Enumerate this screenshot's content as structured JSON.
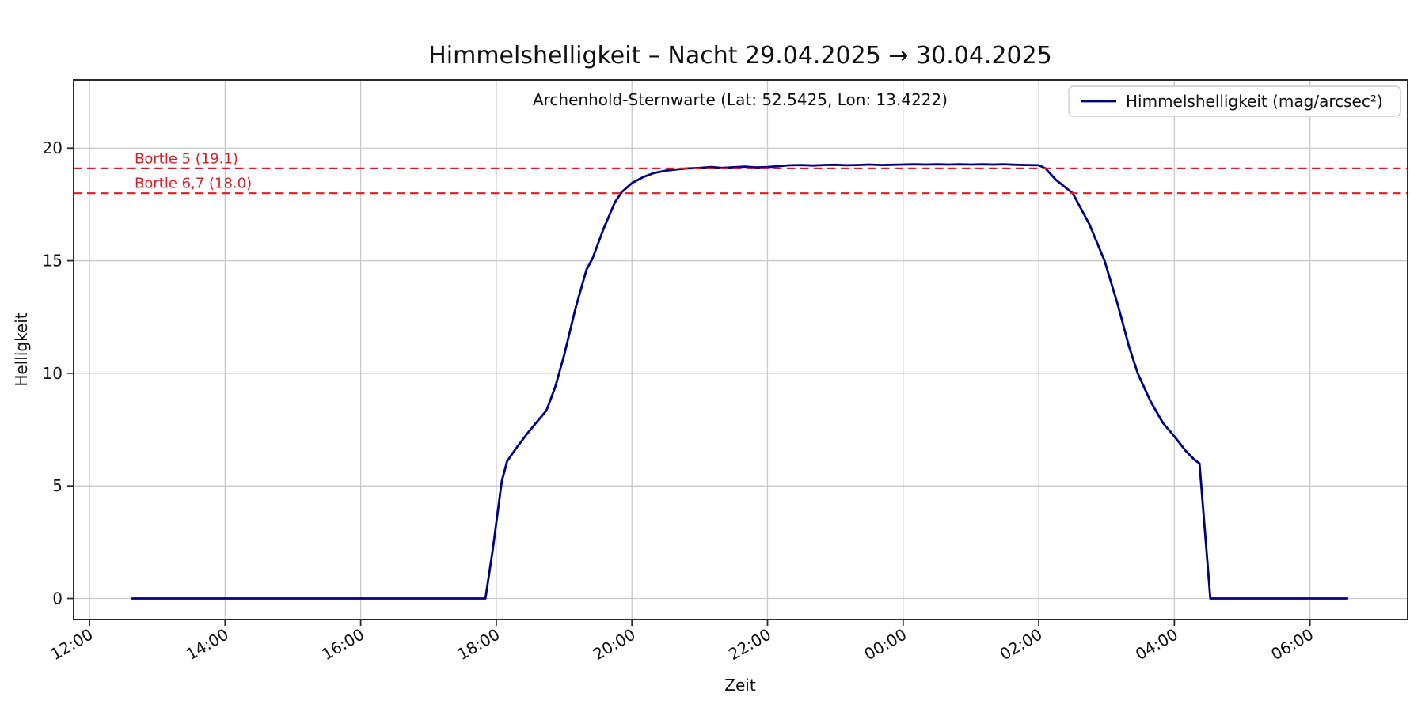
{
  "figure": {
    "background": "#ffffff"
  },
  "chart_data": {
    "type": "line",
    "title": "Himmelshelligkeit – Nacht 29.04.2025 → 30.04.2025",
    "subtitle": "Archenhold-Sternwarte (Lat: 52.5425, Lon: 13.4222)",
    "xlabel": "Zeit",
    "ylabel": "Helligkeit",
    "x_convention": "decimal hours; 12.0 = 12:00 on 29.04.2025, values >= 24 are after midnight (30.04.2025)",
    "xlim": [
      11.766,
      31.44
    ],
    "ylim": [
      -0.93,
      23.03
    ],
    "grid": true,
    "x_ticks": [
      {
        "value": 12,
        "label": "12:00"
      },
      {
        "value": 14,
        "label": "14:00"
      },
      {
        "value": 16,
        "label": "16:00"
      },
      {
        "value": 18,
        "label": "18:00"
      },
      {
        "value": 20,
        "label": "20:00"
      },
      {
        "value": 22,
        "label": "22:00"
      },
      {
        "value": 24,
        "label": "00:00"
      },
      {
        "value": 26,
        "label": "02:00"
      },
      {
        "value": 28,
        "label": "04:00"
      },
      {
        "value": 30,
        "label": "06:00"
      }
    ],
    "y_ticks": [
      0,
      5,
      10,
      15,
      20
    ],
    "legend": {
      "position": "upper-right",
      "entries": [
        {
          "label": "Himmelshelligkeit (mag/arcsec²)",
          "color": "#000080"
        }
      ]
    },
    "thresholds": [
      {
        "label": "Bortle 5 (19.1)",
        "value": 19.1,
        "color": "#d02428",
        "style": "dashed"
      },
      {
        "label": "Bortle 6,7 (18.0)",
        "value": 18.0,
        "color": "#d02428",
        "style": "dashed"
      }
    ],
    "series": [
      {
        "name": "Himmelshelligkeit (mag/arcsec²)",
        "color": "#000080",
        "points": [
          [
            12.63,
            0
          ],
          [
            13.0,
            0
          ],
          [
            13.5,
            0
          ],
          [
            14.0,
            0
          ],
          [
            14.5,
            0
          ],
          [
            15.0,
            0
          ],
          [
            15.5,
            0
          ],
          [
            16.0,
            0
          ],
          [
            16.5,
            0
          ],
          [
            17.0,
            0
          ],
          [
            17.5,
            0
          ],
          [
            17.84,
            0
          ],
          [
            17.95,
            2.2
          ],
          [
            18.08,
            5.2
          ],
          [
            18.16,
            6.1
          ],
          [
            18.3,
            6.7
          ],
          [
            18.45,
            7.3
          ],
          [
            18.6,
            7.85
          ],
          [
            18.74,
            8.35
          ],
          [
            18.87,
            9.4
          ],
          [
            19.0,
            10.8
          ],
          [
            19.17,
            12.9
          ],
          [
            19.33,
            14.6
          ],
          [
            19.42,
            15.1
          ],
          [
            19.58,
            16.4
          ],
          [
            19.75,
            17.6
          ],
          [
            19.85,
            18.05
          ],
          [
            20.0,
            18.45
          ],
          [
            20.17,
            18.72
          ],
          [
            20.33,
            18.9
          ],
          [
            20.5,
            19.0
          ],
          [
            20.67,
            19.06
          ],
          [
            20.83,
            19.1
          ],
          [
            21.0,
            19.12
          ],
          [
            21.17,
            19.16
          ],
          [
            21.33,
            19.12
          ],
          [
            21.5,
            19.15
          ],
          [
            21.67,
            19.18
          ],
          [
            21.83,
            19.14
          ],
          [
            22.0,
            19.16
          ],
          [
            22.17,
            19.2
          ],
          [
            22.33,
            19.24
          ],
          [
            22.5,
            19.25
          ],
          [
            22.67,
            19.23
          ],
          [
            22.83,
            19.25
          ],
          [
            23.0,
            19.26
          ],
          [
            23.17,
            19.24
          ],
          [
            23.33,
            19.25
          ],
          [
            23.5,
            19.27
          ],
          [
            23.67,
            19.25
          ],
          [
            23.83,
            19.26
          ],
          [
            24.0,
            19.27
          ],
          [
            24.17,
            19.28
          ],
          [
            24.33,
            19.27
          ],
          [
            24.5,
            19.28
          ],
          [
            24.67,
            19.27
          ],
          [
            24.83,
            19.28
          ],
          [
            25.0,
            19.27
          ],
          [
            25.17,
            19.28
          ],
          [
            25.33,
            19.27
          ],
          [
            25.5,
            19.28
          ],
          [
            25.67,
            19.26
          ],
          [
            25.83,
            19.25
          ],
          [
            26.0,
            19.24
          ],
          [
            26.1,
            19.1
          ],
          [
            26.25,
            18.6
          ],
          [
            26.5,
            18.0
          ],
          [
            26.75,
            16.6
          ],
          [
            26.97,
            15.0
          ],
          [
            27.17,
            13.0
          ],
          [
            27.33,
            11.2
          ],
          [
            27.46,
            10.0
          ],
          [
            27.65,
            8.75
          ],
          [
            27.83,
            7.8
          ],
          [
            28.0,
            7.2
          ],
          [
            28.17,
            6.55
          ],
          [
            28.3,
            6.15
          ],
          [
            28.37,
            6.0
          ],
          [
            28.53,
            0
          ],
          [
            29.0,
            0
          ],
          [
            29.5,
            0
          ],
          [
            30.0,
            0
          ],
          [
            30.55,
            0
          ]
        ]
      }
    ]
  },
  "colors": {
    "line": "#000080",
    "threshold": "#d02428",
    "grid": "#c9c9c9",
    "spine": "#2a2a2a",
    "text": "#111111",
    "background": "#ffffff"
  }
}
